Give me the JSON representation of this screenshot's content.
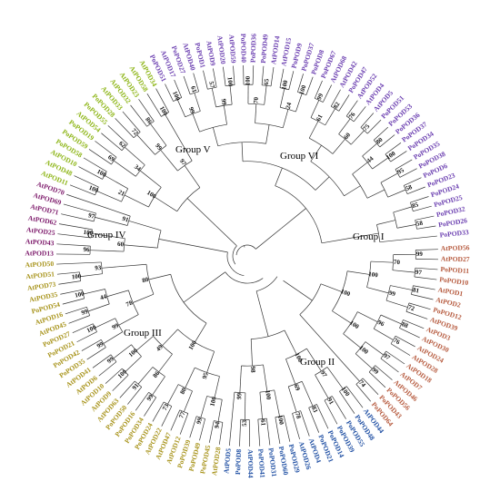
{
  "groups": [
    {
      "name": "Group I",
      "color": "#b65a3e"
    },
    {
      "name": "Group II",
      "color": "#1f4fa3"
    },
    {
      "name": "Group III",
      "color": "#a8941c"
    },
    {
      "name": "Group IV",
      "color": "#7d1a6b"
    },
    {
      "name": "Group V",
      "color": "#8db516"
    },
    {
      "name": "Group VI",
      "color": "#6b3fb0"
    }
  ],
  "leaves": [
    {
      "label": "AtPOD56",
      "group": 0
    },
    {
      "label": "AtPOD27",
      "group": 0
    },
    {
      "label": "PoPOD11",
      "group": 0
    },
    {
      "label": "PoPOD10",
      "group": 0
    },
    {
      "label": "AtPOD1",
      "group": 0
    },
    {
      "label": "AtPOD2",
      "group": 0
    },
    {
      "label": "PoPOD12",
      "group": 0
    },
    {
      "label": "AtPOD39",
      "group": 0
    },
    {
      "label": "AtPOD3",
      "group": 0
    },
    {
      "label": "AtPOD30",
      "group": 0
    },
    {
      "label": "AtPOD24",
      "group": 0
    },
    {
      "label": "AtPOD28",
      "group": 0
    },
    {
      "label": "AtPOD18",
      "group": 0
    },
    {
      "label": "AtPOD7",
      "group": 0
    },
    {
      "label": "AtPOD46",
      "group": 0
    },
    {
      "label": "PoPOD56",
      "group": 0
    },
    {
      "label": "PoPOD43",
      "group": 0
    },
    {
      "label": "PoPOD64",
      "group": 0
    },
    {
      "label": "AtPOD44",
      "group": 1
    },
    {
      "label": "PoPOD48",
      "group": 1
    },
    {
      "label": "PoPOD55",
      "group": 1
    },
    {
      "label": "PoPOD39",
      "group": 1
    },
    {
      "label": "PoPOD14",
      "group": 1
    },
    {
      "label": "PoPOD21",
      "group": 1
    },
    {
      "label": "AtPOD4",
      "group": 1
    },
    {
      "label": "AtPOD26",
      "group": 1
    },
    {
      "label": "PoPOD29",
      "group": 1
    },
    {
      "label": "PoPOD60",
      "group": 1
    },
    {
      "label": "PoPOD31",
      "group": 1
    },
    {
      "label": "PoPOD41",
      "group": 1
    },
    {
      "label": "AtPOD44",
      "group": 1
    },
    {
      "label": "PoPOD8",
      "group": 1
    },
    {
      "label": "AtPOD5",
      "group": 1
    },
    {
      "label": "AtPOD28",
      "group": 2
    },
    {
      "label": "PoPOD45",
      "group": 2
    },
    {
      "label": "PoPOD49",
      "group": 2
    },
    {
      "label": "PoPOD39",
      "group": 2
    },
    {
      "label": "AtPOD12",
      "group": 2
    },
    {
      "label": "AtPOD47",
      "group": 2
    },
    {
      "label": "AtPOD22",
      "group": 2
    },
    {
      "label": "PoPOD24",
      "group": 2
    },
    {
      "label": "PoPOD34",
      "group": 2
    },
    {
      "label": "PoPOD16",
      "group": 2
    },
    {
      "label": "PoPOD50",
      "group": 2
    },
    {
      "label": "AtPOD63",
      "group": 2
    },
    {
      "label": "AtPOD9",
      "group": 2
    },
    {
      "label": "AtPOD10",
      "group": 2
    },
    {
      "label": "AtPOD6",
      "group": 2
    },
    {
      "label": "AtPOD41",
      "group": 2
    },
    {
      "label": "PoPOD35",
      "group": 2
    },
    {
      "label": "PoPOD42",
      "group": 2
    },
    {
      "label": "PoPOD21",
      "group": 2
    },
    {
      "label": "PoPOD27",
      "group": 2
    },
    {
      "label": "AtPOD45",
      "group": 2
    },
    {
      "label": "AtPOD16",
      "group": 2
    },
    {
      "label": "PoPOD54",
      "group": 2
    },
    {
      "label": "AtPOD35",
      "group": 2
    },
    {
      "label": "AtPOD73",
      "group": 2
    },
    {
      "label": "AtPOD51",
      "group": 2
    },
    {
      "label": "AtPOD50",
      "group": 2
    },
    {
      "label": "AtPOD13",
      "group": 3
    },
    {
      "label": "AtPOD43",
      "group": 3
    },
    {
      "label": "AtPOD25",
      "group": 3
    },
    {
      "label": "AtPOD62",
      "group": 3
    },
    {
      "label": "AtPOD71",
      "group": 3
    },
    {
      "label": "AtPOD69",
      "group": 3
    },
    {
      "label": "AtPOD70",
      "group": 3
    },
    {
      "label": "AtPOD11",
      "group": 4
    },
    {
      "label": "AtPOD48",
      "group": 4
    },
    {
      "label": "AtPOD10",
      "group": 4
    },
    {
      "label": "PoPOD58",
      "group": 4
    },
    {
      "label": "PoPOD59",
      "group": 4
    },
    {
      "label": "PoPOD19",
      "group": 4
    },
    {
      "label": "AtPOD54",
      "group": 4
    },
    {
      "label": "PoPOD55",
      "group": 4
    },
    {
      "label": "PoPOD28",
      "group": 4
    },
    {
      "label": "AtPOD33",
      "group": 4
    },
    {
      "label": "AtPOD32",
      "group": 4
    },
    {
      "label": "AtPOD23",
      "group": 4
    },
    {
      "label": "AtPOD58",
      "group": 4
    },
    {
      "label": "AtPOD34",
      "group": 4
    },
    {
      "label": "PoPOD51",
      "group": 5
    },
    {
      "label": "AtPOD17",
      "group": 5
    },
    {
      "label": "PoPOD27",
      "group": 5
    },
    {
      "label": "AtPOD40",
      "group": 5
    },
    {
      "label": "PoPOD1",
      "group": 5
    },
    {
      "label": "AtPOD9",
      "group": 5
    },
    {
      "label": "AtPOD20",
      "group": 5
    },
    {
      "label": "AtPOD59",
      "group": 5
    },
    {
      "label": "PoPOD40",
      "group": 5
    },
    {
      "label": "PoPOD36",
      "group": 5
    },
    {
      "label": "PoPOD49",
      "group": 5
    },
    {
      "label": "AtPOD14",
      "group": 5
    },
    {
      "label": "AtPOD15",
      "group": 5
    },
    {
      "label": "PoPOD9",
      "group": 5
    },
    {
      "label": "PoPOD37",
      "group": 5
    },
    {
      "label": "PoPOD8",
      "group": 5
    },
    {
      "label": "PoPOD67",
      "group": 5
    },
    {
      "label": "AtPOD68",
      "group": 5
    },
    {
      "label": "AtPOD42",
      "group": 5
    },
    {
      "label": "PoPOD47",
      "group": 5
    },
    {
      "label": "AtPOD52",
      "group": 5
    },
    {
      "label": "AtPOD4",
      "group": 5
    },
    {
      "label": "AtPOD5",
      "group": 5
    },
    {
      "label": "PoPOD51",
      "group": 5
    },
    {
      "label": "PoPOD53",
      "group": 5
    },
    {
      "label": "PoPOD36",
      "group": 5
    },
    {
      "label": "PoPOD37",
      "group": 5
    },
    {
      "label": "PoPOD34",
      "group": 5
    },
    {
      "label": "PoPOD35",
      "group": 5
    },
    {
      "label": "PoPOD38",
      "group": 5
    },
    {
      "label": "PoPOD6",
      "group": 5
    },
    {
      "label": "PoPOD23",
      "group": 5
    },
    {
      "label": "PoPOD24",
      "group": 5
    },
    {
      "label": "PoPOD25",
      "group": 5
    },
    {
      "label": "PoPOD32",
      "group": 5
    },
    {
      "label": "PoPOD26",
      "group": 5
    },
    {
      "label": "PoPOD33",
      "group": 5
    }
  ],
  "bootstrap": [
    "99",
    "97",
    "81",
    "72",
    "88",
    "76",
    "97",
    "99",
    "74",
    "70",
    "99",
    "96",
    "100",
    "100",
    "100",
    "100",
    "100",
    "91",
    "83",
    "78",
    "100",
    "61",
    "53",
    "97",
    "69",
    "100",
    "99",
    "100",
    "98",
    "94",
    "99",
    "77",
    "73",
    "99",
    "91",
    "100",
    "99",
    "99",
    "100",
    "99",
    "100",
    "100",
    "100",
    "80",
    "86",
    "100",
    "99",
    "44",
    "93",
    "95",
    "49",
    "78",
    "100",
    "80",
    "96",
    "100",
    "97",
    "60",
    "91",
    "100",
    "100",
    "69",
    "62",
    "72",
    "86",
    "100",
    "21",
    "34",
    "99",
    "100",
    "97",
    "100",
    "61",
    "57",
    "100",
    "100",
    "65",
    "100",
    "100",
    "99",
    "82",
    "76",
    "75",
    "80",
    "100",
    "95",
    "58",
    "85",
    "58",
    "99",
    "99",
    "70",
    "24",
    "61",
    "60",
    "44"
  ]
}
